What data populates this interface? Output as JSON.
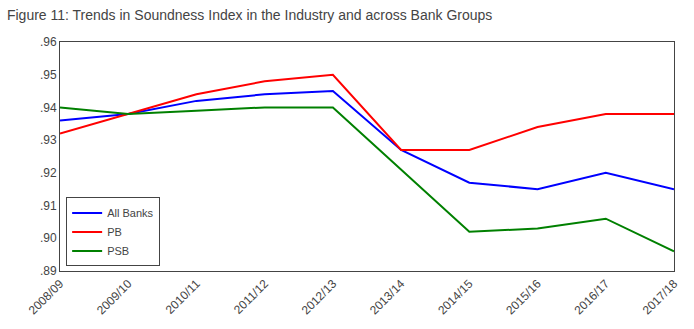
{
  "chart_data": {
    "type": "line",
    "title": "Figure 11: Trends in Soundness Index in the Industry and across Bank Groups",
    "categories": [
      "2008/09",
      "2009/10",
      "2010/11",
      "2011/12",
      "2012/13",
      "2013/14",
      "2014/15",
      "2015/16",
      "2016/17",
      "2017/18"
    ],
    "series": [
      {
        "name": "All Banks",
        "color": "#0000FF",
        "values": [
          0.936,
          0.938,
          0.942,
          0.944,
          0.945,
          0.927,
          0.917,
          0.915,
          0.92,
          0.915
        ]
      },
      {
        "name": "PB",
        "color": "#FF0000",
        "values": [
          0.932,
          0.938,
          0.944,
          0.948,
          0.95,
          0.927,
          0.927,
          0.934,
          0.938,
          0.938
        ]
      },
      {
        "name": "PSB",
        "color": "#008000",
        "values": [
          0.94,
          0.938,
          0.939,
          0.94,
          0.94,
          0.921,
          0.902,
          0.903,
          0.906,
          0.896
        ]
      }
    ],
    "ylim": [
      0.89,
      0.96
    ],
    "yticks": [
      {
        "value": 0.89,
        "label": ".89"
      },
      {
        "value": 0.9,
        "label": ".90"
      },
      {
        "value": 0.91,
        "label": ".91"
      },
      {
        "value": 0.92,
        "label": ".92"
      },
      {
        "value": 0.93,
        "label": ".93"
      },
      {
        "value": 0.94,
        "label": ".94"
      },
      {
        "value": 0.95,
        "label": ".95"
      },
      {
        "value": 0.96,
        "label": ".96"
      }
    ],
    "grid": false,
    "legend": "lower left"
  }
}
